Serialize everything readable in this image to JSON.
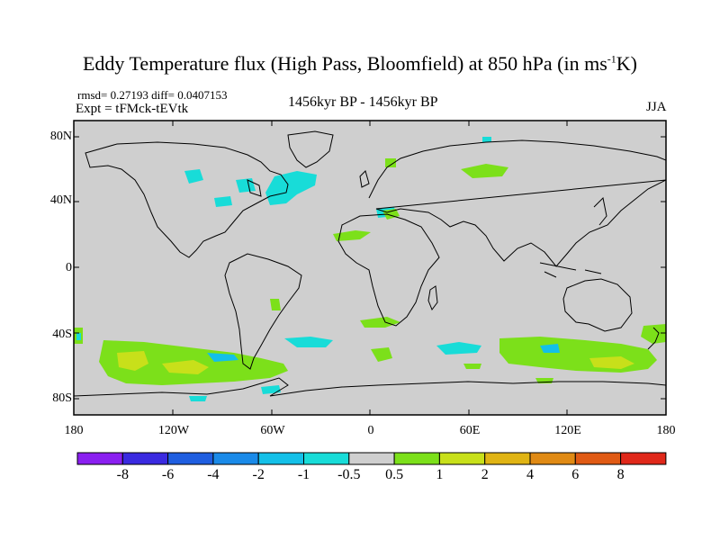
{
  "title": {
    "main": "Eddy Temperature flux (High Pass, Bloomfield) at 850 hPa (in ms",
    "sup": "-1",
    "end": "K)"
  },
  "stats": "rmsd= 0.27193 diff= 0.0407153",
  "experiment": "Expt = tFMck-tEVtk",
  "period": "1456kyr BP - 1456kyr BP",
  "season": "JJA",
  "lat_labels": [
    "80N",
    "40N",
    "0",
    "40S",
    "80S"
  ],
  "lon_labels": [
    "180",
    "120W",
    "60W",
    "0",
    "60E",
    "120E",
    "180"
  ],
  "colorbar": {
    "labels": [
      "-8",
      "-6",
      "-4",
      "-2",
      "-1",
      "-0.5",
      "0.5",
      "1",
      "2",
      "4",
      "6",
      "8"
    ],
    "colors": [
      "#8a1ff0",
      "#3a2ae0",
      "#1f5ee0",
      "#1a8ae8",
      "#14c0e8",
      "#18dcd8",
      "#cfcfcf",
      "#7ce01a",
      "#c8e01a",
      "#e0b414",
      "#e08a14",
      "#e05a14",
      "#e0281a"
    ]
  },
  "map": {
    "ocean_color": "#cfcfcf",
    "coast_color": "#000000"
  }
}
